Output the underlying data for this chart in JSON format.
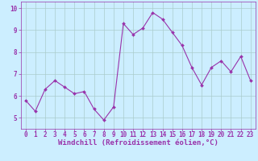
{
  "x": [
    0,
    1,
    2,
    3,
    4,
    5,
    6,
    7,
    8,
    9,
    10,
    11,
    12,
    13,
    14,
    15,
    16,
    17,
    18,
    19,
    20,
    21,
    22,
    23
  ],
  "y": [
    5.8,
    5.3,
    6.3,
    6.7,
    6.4,
    6.1,
    6.2,
    5.4,
    4.9,
    5.5,
    9.3,
    8.8,
    9.1,
    9.8,
    9.5,
    8.9,
    8.3,
    7.3,
    6.5,
    7.3,
    7.6,
    7.1,
    7.8,
    6.7
  ],
  "line_color": "#9933aa",
  "marker_color": "#9933aa",
  "background_color": "#cceeff",
  "plot_bg_color": "#cceeff",
  "grid_color": "#aacccc",
  "xlabel": "Windchill (Refroidissement éolien,°C)",
  "xlabel_color": "#9933aa",
  "ylim": [
    4.5,
    10.3
  ],
  "xlim": [
    -0.5,
    23.5
  ],
  "yticks": [
    5,
    6,
    7,
    8,
    9,
    10
  ],
  "xticks": [
    0,
    1,
    2,
    3,
    4,
    5,
    6,
    7,
    8,
    9,
    10,
    11,
    12,
    13,
    14,
    15,
    16,
    17,
    18,
    19,
    20,
    21,
    22,
    23
  ],
  "tick_color": "#9933aa",
  "tick_fontsize": 5.5,
  "xlabel_fontsize": 6.5,
  "spine_color": "#9933aa"
}
